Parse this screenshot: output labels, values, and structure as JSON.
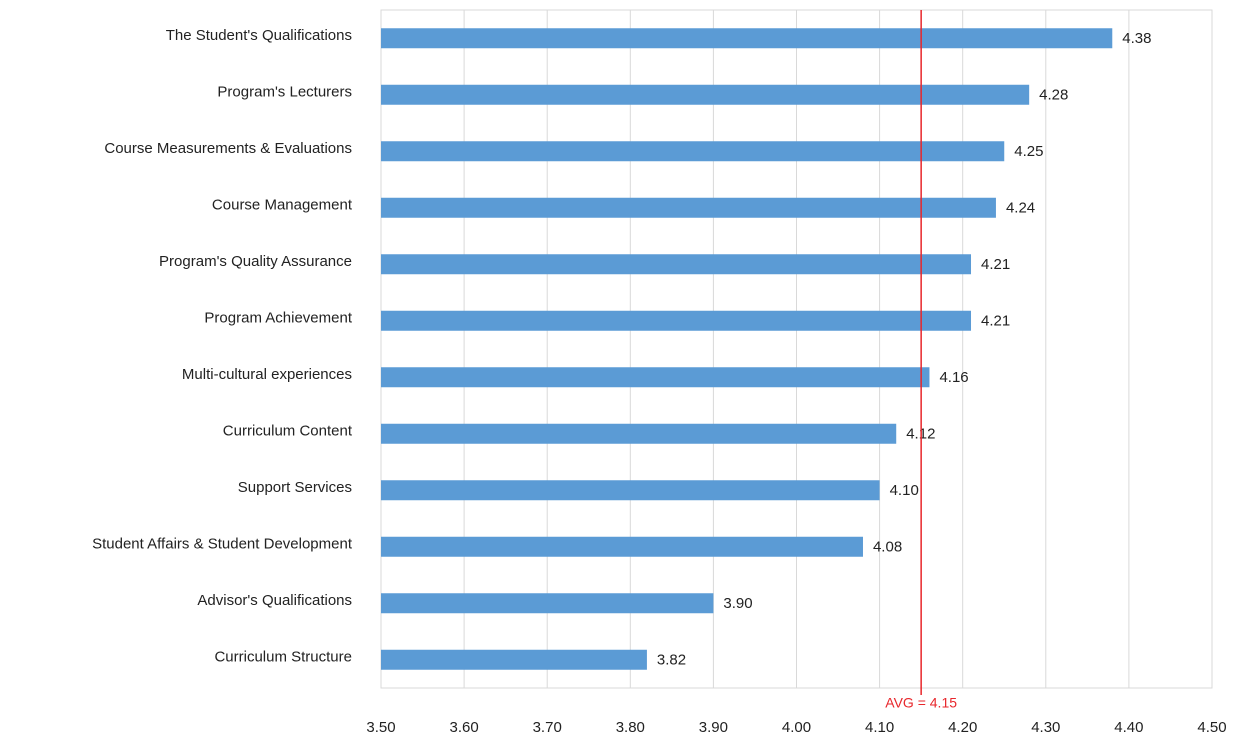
{
  "chart_data": {
    "type": "barh",
    "categories": [
      "The Student's Qualifications",
      "Program's Lecturers",
      "Course Measurements & Evaluations",
      "Course Management",
      "Program's Quality Assurance",
      "Program Achievement",
      "Multi-cultural experiences",
      "Curriculum Content",
      "Support Services",
      "Student Affairs & Student Development",
      "Advisor's Qualifications",
      "Curriculum Structure"
    ],
    "values": [
      4.38,
      4.28,
      4.25,
      4.24,
      4.21,
      4.21,
      4.16,
      4.12,
      4.1,
      4.08,
      3.9,
      3.82
    ],
    "value_labels": [
      "4.38",
      "4.28",
      "4.25",
      "4.24",
      "4.21",
      "4.21",
      "4.16",
      "4.12",
      "4.10",
      "4.08",
      "3.90",
      "3.82"
    ],
    "color": "#5b9bd5",
    "xlim": [
      3.5,
      4.5
    ],
    "xticks": [
      {
        "value": 3.5,
        "label": "3.50"
      },
      {
        "value": 3.6,
        "label": "3.60"
      },
      {
        "value": 3.7,
        "label": "3.70"
      },
      {
        "value": 3.8,
        "label": "3.80"
      },
      {
        "value": 3.9,
        "label": "3.90"
      },
      {
        "value": 4.0,
        "label": "4.00"
      },
      {
        "value": 4.1,
        "label": "4.10"
      },
      {
        "value": 4.2,
        "label": "4.20"
      },
      {
        "value": 4.3,
        "label": "4.30"
      },
      {
        "value": 4.4,
        "label": "4.40"
      },
      {
        "value": 4.5,
        "label": "4.50"
      }
    ],
    "grid": true,
    "avg_line": {
      "value": 4.15,
      "label": "AVG = 4.15",
      "color": "#e8262b"
    }
  }
}
